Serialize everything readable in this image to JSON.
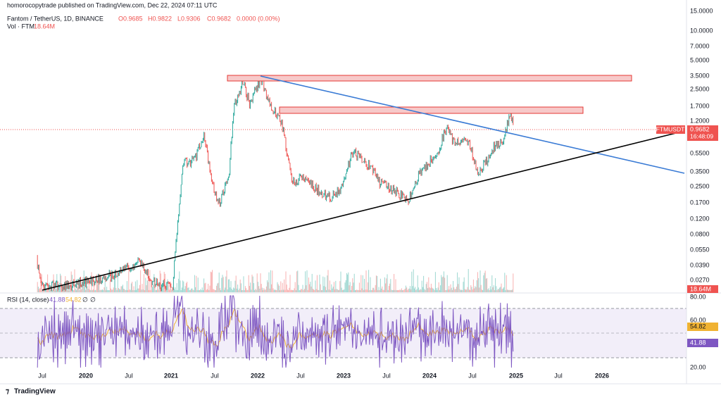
{
  "header": {
    "published": "homorocopytrade published on TradingView.com, Dec 22, 2024 07:11 UTC",
    "symbol": "Fantom / TetherUS, 1D, BINANCE",
    "open": "O0.9685",
    "high": "H0.9822",
    "low": "L0.9306",
    "close": "C0.9682",
    "change": "0.0000 (0.00%)",
    "volume_label": "Vol · FTM",
    "volume_value": "18.64M"
  },
  "price_scale": [
    "15.0000",
    "10.0000",
    "7.0000",
    "5.0000",
    "3.5000",
    "2.5000",
    "1.7000",
    "1.2000",
    "0.5500",
    "0.3500",
    "0.2500",
    "0.1700",
    "0.1200",
    "0.0800",
    "0.0550",
    "0.0390",
    "0.0270"
  ],
  "price_badge": {
    "symbol": "FTMUSDT",
    "price": "0.9682",
    "countdown": "16:48:09",
    "volume": "18.64M"
  },
  "rsi": {
    "title": "RSI (14, close)",
    "value": "41.88",
    "ma": "54.82",
    "extra1": "∅",
    "extra2": "∅",
    "scale": [
      "80.00",
      "60.00",
      "20.00"
    ]
  },
  "time_axis": [
    "Jul",
    "2020",
    "Jul",
    "2021",
    "Jul",
    "2022",
    "Jul",
    "2023",
    "Jul",
    "2024",
    "Jul",
    "2025",
    "Jul",
    "2026"
  ],
  "footer": "TradingView"
}
